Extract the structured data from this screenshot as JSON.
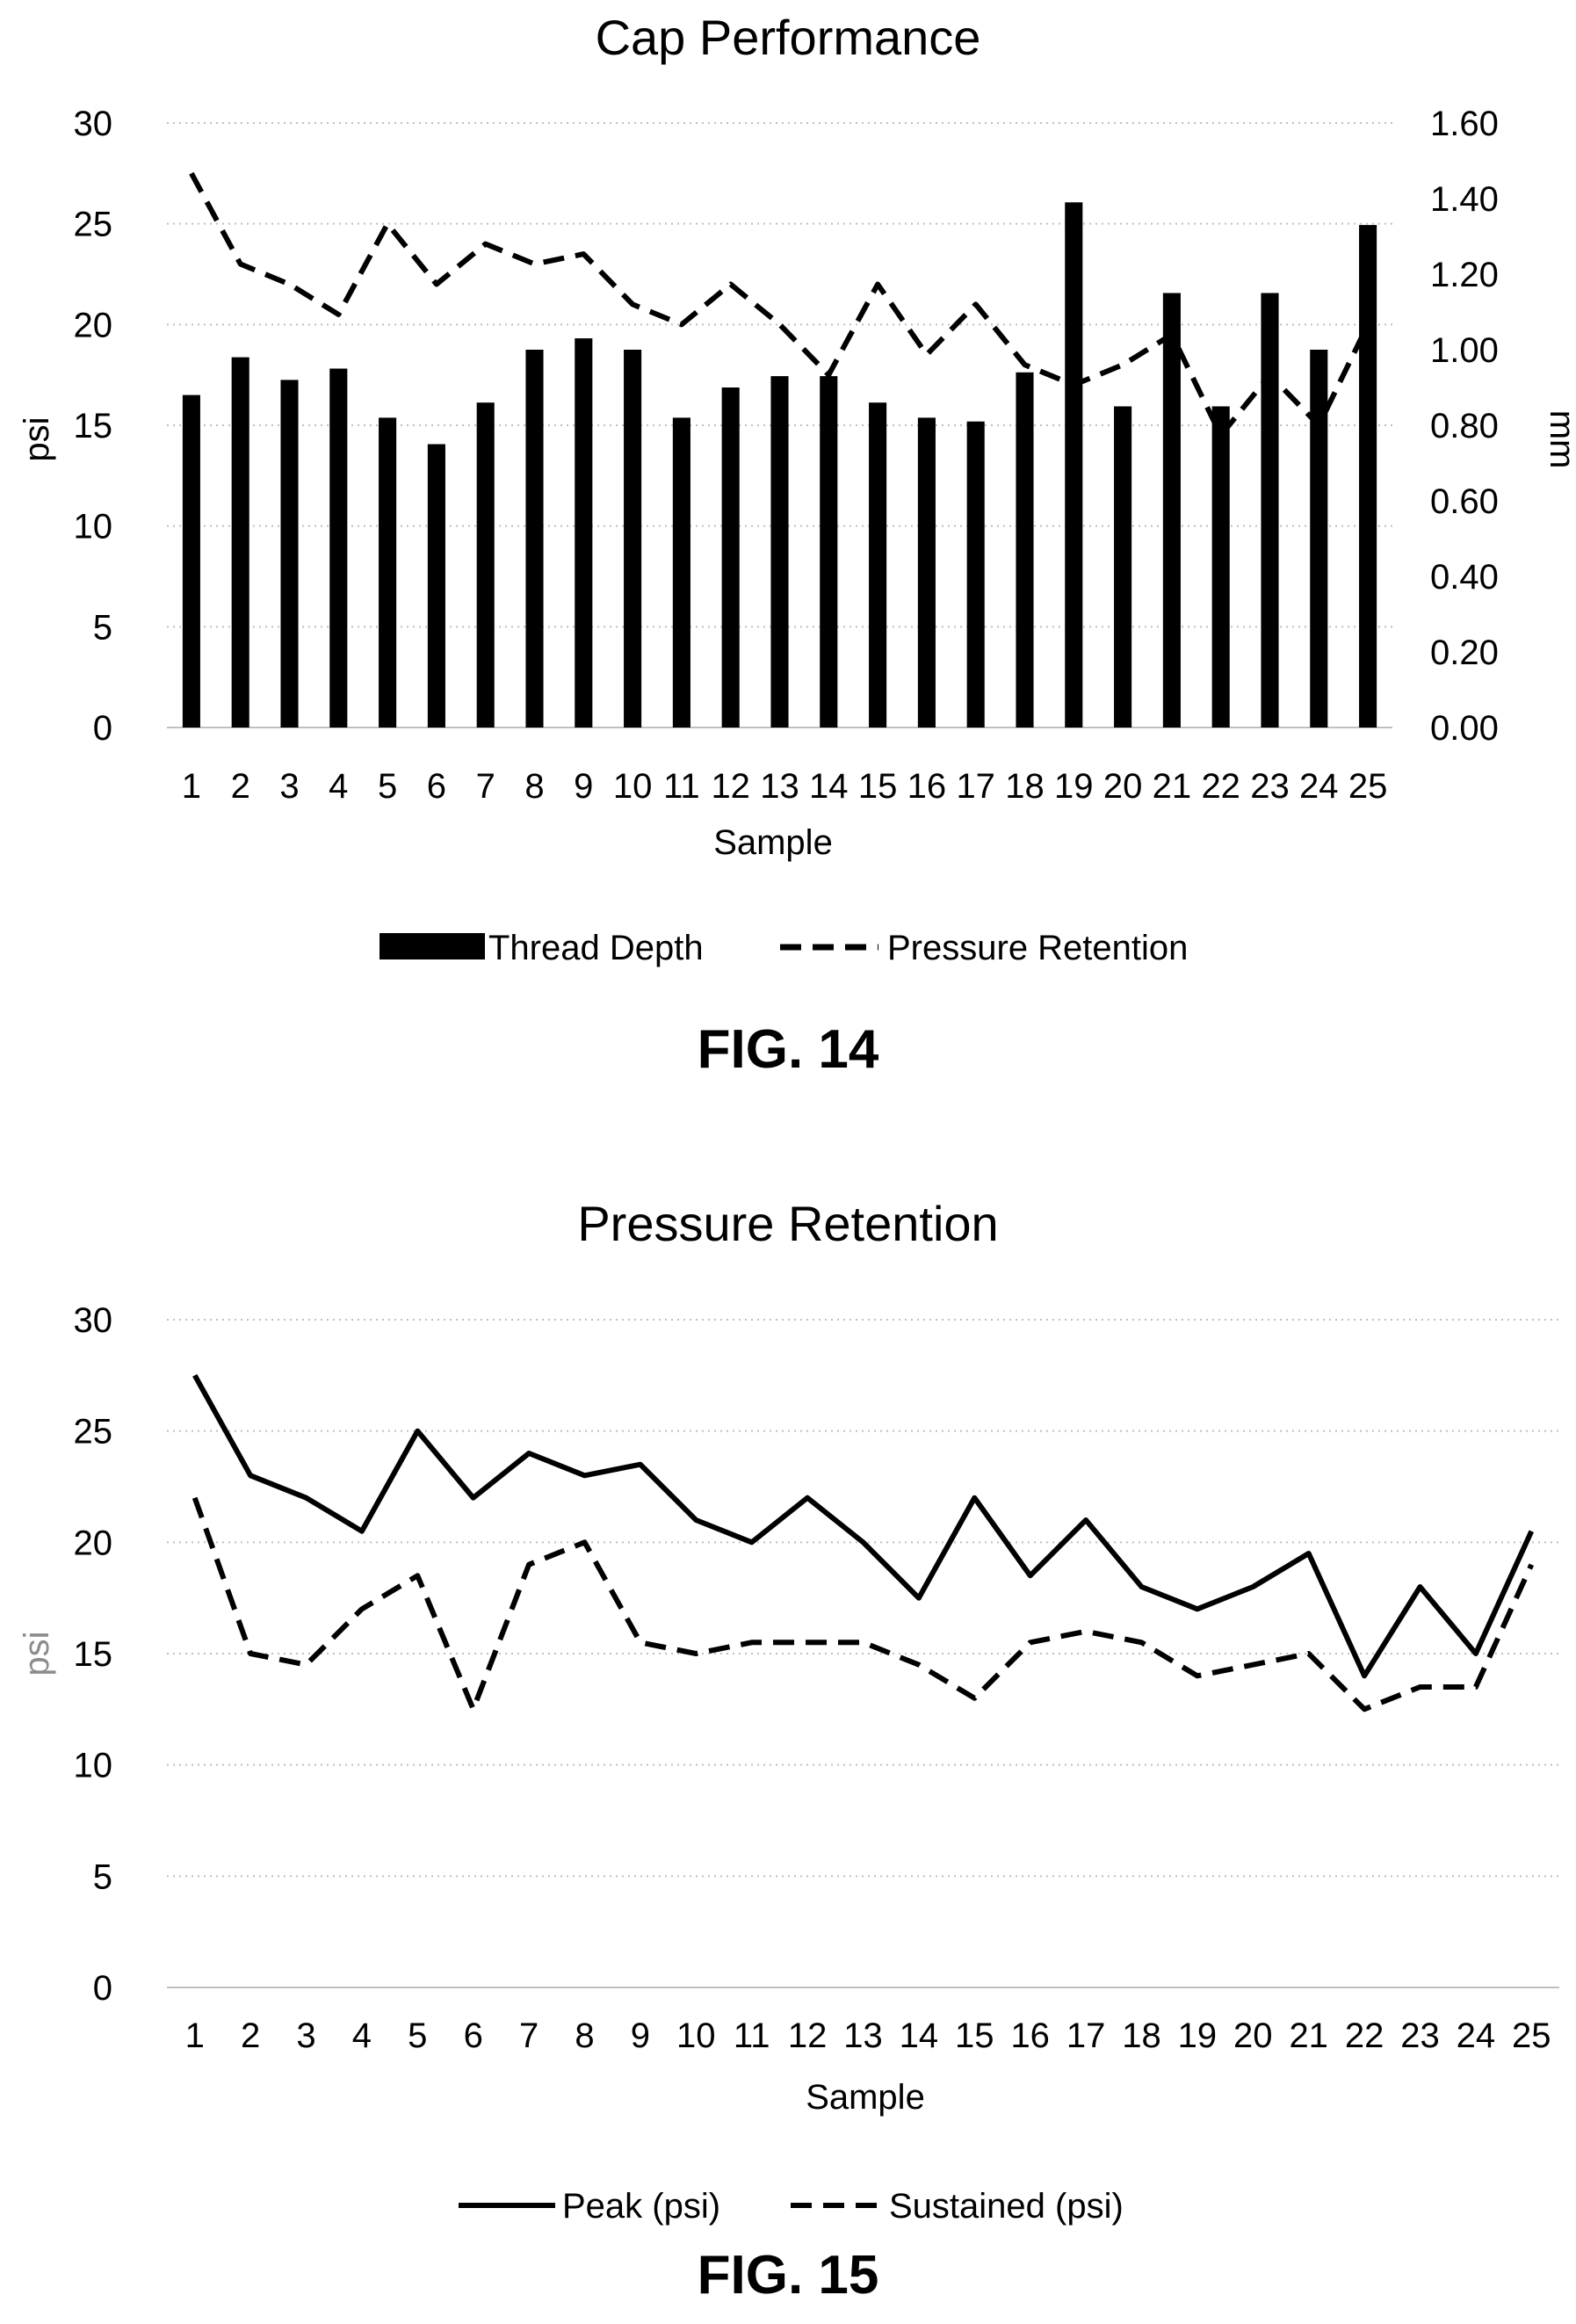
{
  "figures": [
    {
      "fig_label": "FIG. 14",
      "chart_data": {
        "type": "bar",
        "title": "Cap Performance",
        "xlabel": "Sample",
        "ylabel": "psi",
        "y2label": "mm",
        "categories": [
          "1",
          "2",
          "3",
          "4",
          "5",
          "6",
          "7",
          "8",
          "9",
          "10",
          "11",
          "12",
          "13",
          "14",
          "15",
          "16",
          "17",
          "18",
          "19",
          "20",
          "21",
          "22",
          "23",
          "24",
          "25"
        ],
        "ylim": [
          0,
          30
        ],
        "yticks": [
          "0",
          "5",
          "10",
          "15",
          "20",
          "25",
          "30"
        ],
        "y2lim": [
          0,
          1.6
        ],
        "y2ticks": [
          "0.00",
          "0.20",
          "0.40",
          "0.60",
          "0.80",
          "1.00",
          "1.20",
          "1.40",
          "1.60"
        ],
        "grid": true,
        "legend_position": "bottom",
        "series": [
          {
            "name": "Thread Depth",
            "type": "bar",
            "axis": "right",
            "values": [
              0.88,
              0.98,
              0.92,
              0.95,
              0.82,
              0.75,
              0.86,
              1.0,
              1.03,
              1.0,
              0.82,
              0.9,
              0.93,
              0.93,
              0.86,
              0.82,
              0.81,
              0.94,
              1.39,
              0.85,
              1.15,
              0.85,
              1.15,
              1.0,
              1.33
            ]
          },
          {
            "name": "Pressure Retention",
            "type": "line",
            "style": "dashed",
            "axis": "left",
            "values": [
              27.5,
              23.0,
              22.0,
              20.5,
              25.0,
              22.0,
              24.0,
              23.0,
              23.5,
              21.0,
              20.0,
              22.0,
              20.0,
              17.5,
              22.0,
              18.5,
              21.0,
              18.0,
              17.0,
              18.0,
              19.5,
              14.5,
              17.5,
              15.0,
              20.0
            ]
          }
        ]
      }
    },
    {
      "fig_label": "FIG. 15",
      "chart_data": {
        "type": "line",
        "title": "Pressure Retention",
        "xlabel": "Sample",
        "ylabel": "psi",
        "categories": [
          "1",
          "2",
          "3",
          "4",
          "5",
          "6",
          "7",
          "8",
          "9",
          "10",
          "11",
          "12",
          "13",
          "14",
          "15",
          "16",
          "17",
          "18",
          "19",
          "20",
          "21",
          "22",
          "23",
          "24",
          "25"
        ],
        "ylim": [
          0,
          30
        ],
        "yticks": [
          "0",
          "5",
          "10",
          "15",
          "20",
          "25",
          "30"
        ],
        "grid": true,
        "legend_position": "bottom",
        "series": [
          {
            "name": "Peak (psi)",
            "style": "solid",
            "values": [
              27.5,
              23.0,
              22.0,
              20.5,
              25.0,
              22.0,
              24.0,
              23.0,
              23.5,
              21.0,
              20.0,
              22.0,
              20.0,
              17.5,
              22.0,
              18.5,
              21.0,
              18.0,
              17.0,
              18.0,
              19.5,
              14.0,
              18.0,
              15.0,
              20.5
            ]
          },
          {
            "name": "Sustained (psi)",
            "style": "dashed",
            "values": [
              22.0,
              15.0,
              14.5,
              17.0,
              18.5,
              12.5,
              19.0,
              20.0,
              15.5,
              15.0,
              15.5,
              15.5,
              15.5,
              14.5,
              13.0,
              15.5,
              16.0,
              15.5,
              14.0,
              14.5,
              15.0,
              12.5,
              13.5,
              13.5,
              19.0
            ]
          }
        ]
      }
    }
  ]
}
